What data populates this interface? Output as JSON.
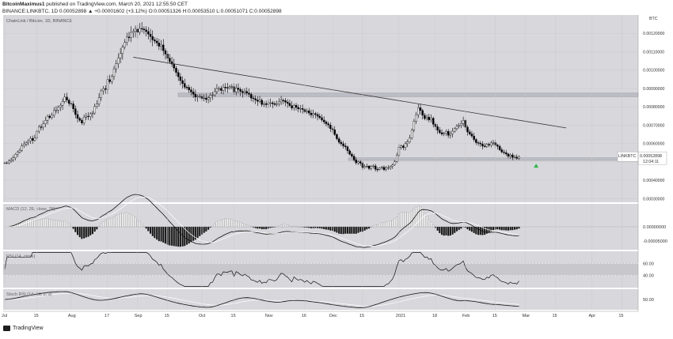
{
  "header": {
    "line1_user": "BitcoinMaximus1",
    "line1_rest": " published on TradingView.com, March 20, 2021 12:55:50 CET",
    "line2": "BINANCE:LINKBTC, 1D  0.00052898 ▲ +0.00001602 (+3.12%)  O:0.00051326  H:0.00053510  L:0.00051071  C:0.00052898"
  },
  "footer": {
    "brand": "TradingView"
  },
  "colors": {
    "panel_bg": "#d7d7dc",
    "up": "#ffffff",
    "down": "#000000",
    "line": "#222222",
    "signal": "#ffffff",
    "highlight": "#b9b9c0",
    "green": "#2db84a"
  },
  "chart_data": [
    {
      "type": "candlestick",
      "title": "ChainLink / Bitcoin, 1D, BINANCE",
      "y_ticks": [
        "0.00120000",
        "0.00110000",
        "0.00100000",
        "0.00090000",
        "0.00080000",
        "0.00070000",
        "0.00060000",
        "0.00050000",
        "0.00040000",
        "0.00030000"
      ],
      "ylim": [
        0.00028,
        0.0013
      ],
      "x_ticks": [
        "Jul",
        "15",
        "Aug",
        "17",
        "Sep",
        "15",
        "Oct",
        "15",
        "Nov",
        "16",
        "Dec",
        "15",
        "2021",
        "18",
        "Feb",
        "15",
        "Mar",
        "15",
        "Apr",
        "15"
      ],
      "x_tick_day": [
        0,
        15,
        31,
        48,
        62,
        76,
        92,
        107,
        123,
        140,
        153,
        167,
        184,
        201,
        215,
        229,
        243,
        257,
        274,
        288
      ],
      "last_index": 262,
      "price_label": {
        "symbol": "LINKBTC",
        "value": "0.00052898",
        "countdown": "12:04:11"
      },
      "close": [
        0.000495,
        0.000495,
        0.000505,
        0.000512,
        0.000522,
        0.000542,
        0.000553,
        0.000563,
        0.000587,
        0.000597,
        0.000605,
        0.000615,
        0.000628,
        0.000617,
        0.000631,
        0.000667,
        0.000691,
        0.000689,
        0.000708,
        0.000726,
        0.000749,
        0.000742,
        0.000754,
        0.00078,
        0.000782,
        0.000798,
        0.000808,
        0.000829,
        0.000853,
        0.000836,
        0.000818,
        0.000816,
        0.000789,
        0.000758,
        0.000737,
        0.000727,
        0.000712,
        0.000744,
        0.000749,
        0.000746,
        0.000762,
        0.000766,
        0.000802,
        0.000816,
        0.00085,
        0.000887,
        0.000899,
        0.000895,
        0.000948,
        0.000937,
        0.000965,
        0.001007,
        0.001035,
        0.001066,
        0.00109,
        0.001125,
        0.001151,
        0.00118,
        0.001178,
        0.001205,
        0.001211,
        0.001223,
        0.001206,
        0.001227,
        0.001224,
        0.001219,
        0.00121,
        0.001196,
        0.001183,
        0.001165,
        0.001158,
        0.001148,
        0.00113,
        0.001137,
        0.001106,
        0.001088,
        0.001065,
        0.001046,
        0.001033,
        0.001011,
        0.000987,
        0.000964,
        0.000943,
        0.000927,
        0.000907,
        0.000906,
        0.000892,
        0.000881,
        0.000869,
        0.000853,
        0.000857,
        0.000857,
        0.000846,
        0.000848,
        0.00084,
        0.000849,
        0.000863,
        0.000865,
        0.000883,
        0.000899,
        0.0009,
        0.000889,
        0.000907,
        0.000905,
        0.000904,
        0.000909,
        0.00091,
        0.000881,
        0.000902,
        0.000895,
        0.000884,
        0.000877,
        0.000884,
        0.000875,
        0.000868,
        0.000848,
        0.000845,
        0.000837,
        0.00083,
        0.000836,
        0.000813,
        0.000817,
        0.000812,
        0.000822,
        0.000822,
        0.000817,
        0.000813,
        0.000817,
        0.000827,
        0.000836,
        0.000834,
        0.000825,
        0.000819,
        0.000807,
        0.000793,
        0.000808,
        0.000797,
        0.000789,
        0.000791,
        0.000786,
        0.000773,
        0.000778,
        0.000766,
        0.000756,
        0.000763,
        0.000758,
        0.000749,
        0.000741,
        0.000728,
        0.000718,
        0.000708,
        0.000701,
        0.000681,
        0.000675,
        0.000649,
        0.000626,
        0.000607,
        0.000599,
        0.000587,
        0.000582,
        0.000561,
        0.000542,
        0.000531,
        0.000511,
        0.000495,
        0.000501,
        0.000493,
        0.000469,
        0.000475,
        0.000477,
        0.000464,
        0.000475,
        0.000478,
        0.00046,
        0.000459,
        0.000466,
        0.000471,
        0.000458,
        0.000467,
        0.000469,
        0.000476,
        0.000484,
        0.000501,
        0.000537,
        0.00058,
        0.000587,
        0.000578,
        0.000599,
        0.000608,
        0.00063,
        0.000674,
        0.000722,
        0.000757,
        0.000795,
        0.00078,
        0.000754,
        0.000736,
        0.000744,
        0.000729,
        0.000738,
        0.000705,
        0.000692,
        0.000673,
        0.000659,
        0.000652,
        0.000656,
        0.000666,
        0.000645,
        0.000653,
        0.000667,
        0.000681,
        0.000695,
        0.000698,
        0.000709,
        0.000726,
        0.000689,
        0.000663,
        0.000652,
        0.000641,
        0.000622,
        0.000605,
        0.000602,
        0.000598,
        0.000586,
        0.000585,
        0.000596,
        0.000591,
        0.000603,
        0.000605,
        0.000592,
        0.000585,
        0.000566,
        0.000554,
        0.00055,
        0.000543,
        0.000531,
        0.000538,
        0.000525,
        0.000526,
        0.00052,
        0.000529
      ],
      "trendline": {
        "from": [
          60,
          0.00107
        ],
        "to": [
          262,
          0.000685
        ]
      },
      "resistance_band": [
        0.000855,
        0.000875
      ],
      "support_band": [
        0.000508,
        0.000522
      ],
      "arrow": {
        "day": 248,
        "price": 0.000482
      }
    },
    {
      "type": "histogram",
      "title": "MACD (12, 26, close, 26)",
      "y_ticks": [
        "0.00000000",
        "-0.00005000"
      ],
      "ylim": [
        -8e-05,
        8e-05
      ]
    },
    {
      "type": "line",
      "title": "RSI (14, close)",
      "y_ticks": [
        "60.00",
        "40.00"
      ],
      "ylim": [
        20,
        80
      ]
    },
    {
      "type": "line",
      "title": "Stoch RSI (14, 14, 3, 3)",
      "y_ticks": [
        "50.00"
      ],
      "ylim": [
        0,
        100
      ]
    }
  ]
}
